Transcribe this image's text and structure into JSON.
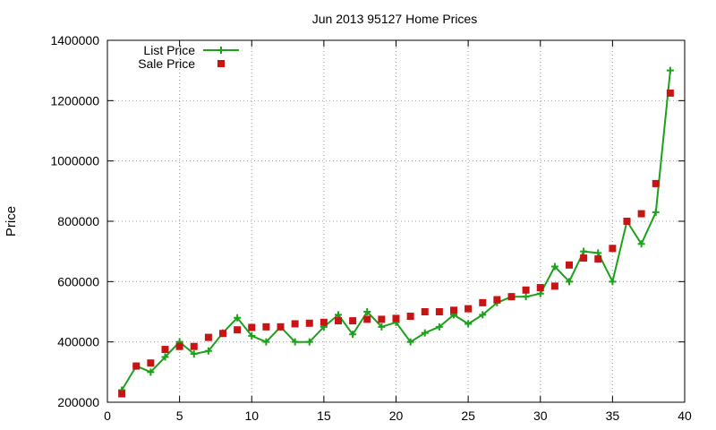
{
  "chart_data": {
    "type": "line",
    "title": "Jun 2013 95127 Home Prices",
    "xlabel": "",
    "ylabel": "Price",
    "xlim": [
      0,
      40
    ],
    "ylim": [
      200000,
      1400000
    ],
    "x_ticks": [
      0,
      5,
      10,
      15,
      20,
      25,
      30,
      35,
      40
    ],
    "y_ticks": [
      200000,
      400000,
      600000,
      800000,
      1000000,
      1200000,
      1400000
    ],
    "x_tick_labels": [
      "0",
      "5",
      "10",
      "15",
      "20",
      "25",
      "30",
      "35",
      "40"
    ],
    "y_tick_labels": [
      "200000",
      "400000",
      "600000",
      "800000",
      "1000000",
      "1200000",
      "1400000"
    ],
    "grid": true,
    "legend_position": "top-left",
    "x": [
      1,
      2,
      3,
      4,
      5,
      6,
      7,
      8,
      9,
      10,
      11,
      12,
      13,
      14,
      15,
      16,
      17,
      18,
      19,
      20,
      21,
      22,
      23,
      24,
      25,
      26,
      27,
      28,
      29,
      30,
      31,
      32,
      33,
      34,
      35,
      36,
      37,
      38,
      39
    ],
    "series": [
      {
        "name": "List Price",
        "style": "line-points",
        "color": "#1aa31a",
        "values": [
          240000,
          320000,
          300000,
          350000,
          400000,
          360000,
          370000,
          430000,
          480000,
          420000,
          400000,
          450000,
          400000,
          400000,
          450000,
          490000,
          425000,
          500000,
          450000,
          465000,
          400000,
          430000,
          450000,
          490000,
          460000,
          490000,
          530000,
          550000,
          550000,
          560000,
          650000,
          600000,
          700000,
          695000,
          600000,
          800000,
          725000,
          830000,
          1300000
        ]
      },
      {
        "name": "Sale Price",
        "style": "points",
        "color": "#c81414",
        "values": [
          228000,
          320000,
          330000,
          375000,
          385000,
          385000,
          415000,
          428000,
          440000,
          448000,
          450000,
          450000,
          460000,
          462000,
          465000,
          470000,
          470000,
          475000,
          475000,
          478000,
          485000,
          500000,
          500000,
          505000,
          510000,
          530000,
          540000,
          550000,
          572000,
          580000,
          585000,
          655000,
          678000,
          675000,
          710000,
          800000,
          825000,
          925000,
          1225000
        ]
      }
    ]
  }
}
